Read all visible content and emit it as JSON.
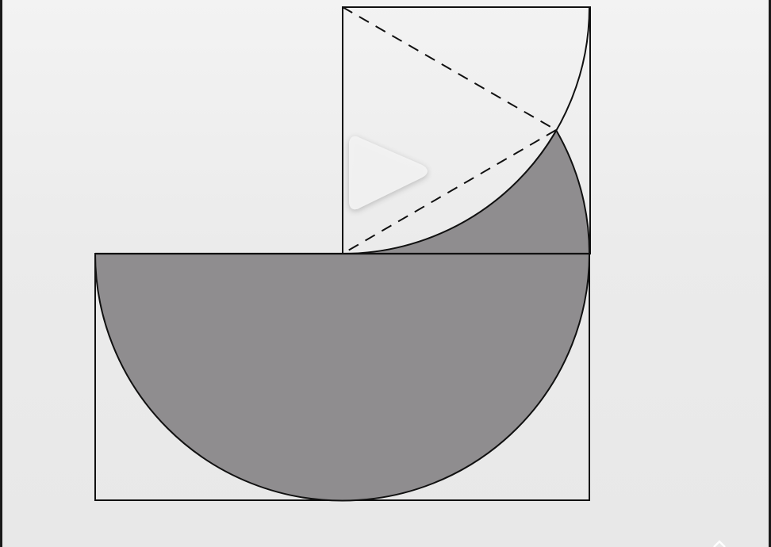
{
  "figure": {
    "fill_color": "#8f8d8f",
    "stroke_color": "#111111",
    "background_color": "#ececec"
  },
  "video": {
    "play_icon": "play-icon",
    "play_color": "#f4f4f4"
  }
}
